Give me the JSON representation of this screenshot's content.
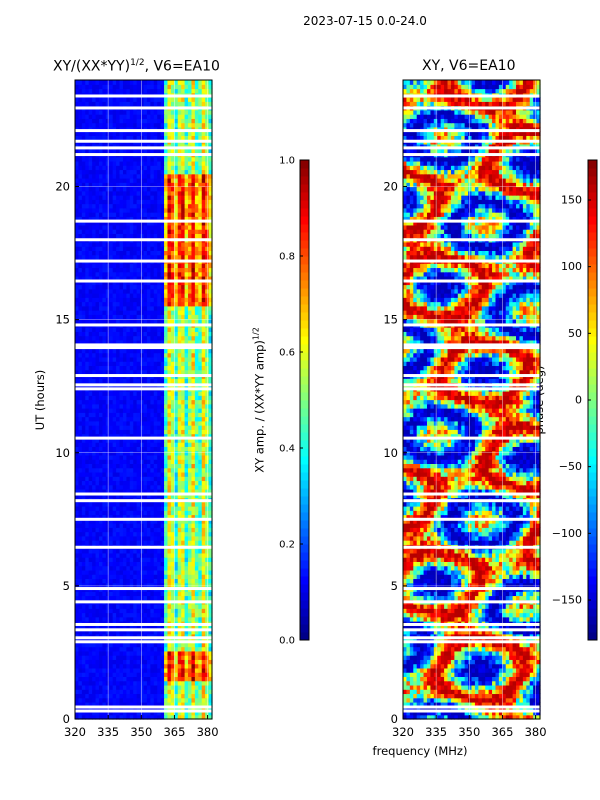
{
  "figure": {
    "suptitle": "2023-07-15 0.0-24.0",
    "shared_xlabel": "frequency (MHz)"
  },
  "chart_data": [
    {
      "type": "heatmap",
      "title": "XY/(XX*YY)^{1/2}, V6=EA10",
      "title_main": "XY/(XX*YY)",
      "title_sup": "1/2",
      "title_tail": ", V6=EA10",
      "xlabel": "frequency (MHz)",
      "ylabel": "UT (hours)",
      "xlim": [
        320,
        382
      ],
      "ylim": [
        0,
        24
      ],
      "xticks": [
        "320",
        "335",
        "350",
        "365",
        "380"
      ],
      "yticks": [
        "0",
        "5",
        "10",
        "15",
        "20"
      ],
      "grid": true,
      "colormap": "jet",
      "colorbar": {
        "label": "XY amp. / (XX*YY amp)^{1/2}",
        "label_main": "XY amp. / (XX*YY amp)",
        "label_sup": "1/2",
        "range": [
          0.0,
          1.0
        ],
        "ticks": [
          "0.0",
          "0.2",
          "0.4",
          "0.6",
          "0.8",
          "1.0"
        ]
      },
      "gap_hours": [
        0.3,
        0.45,
        2.9,
        3.05,
        3.35,
        3.55,
        4.4,
        4.9,
        6.45,
        7.5,
        8.2,
        8.45,
        10.55,
        12.4,
        12.55,
        12.9,
        13.95,
        14.05,
        14.8,
        16.45,
        17.2,
        18.0,
        18.7,
        21.2,
        21.45,
        21.7,
        22.1,
        22.95,
        23.4
      ],
      "bright_band_mhz": [
        360,
        382
      ],
      "approx_amplitude_outside_band": 0.1,
      "approx_amplitude_in_band": 0.45
    },
    {
      "type": "heatmap",
      "title": "XY, V6=EA10",
      "xlabel": "frequency (MHz)",
      "ylabel": "",
      "xlim": [
        320,
        382
      ],
      "ylim": [
        0,
        24
      ],
      "xticks": [
        "320",
        "335",
        "350",
        "365",
        "380"
      ],
      "yticks": [
        "0",
        "5",
        "10",
        "15",
        "20"
      ],
      "grid": true,
      "colormap": "jet",
      "colorbar": {
        "label": "phase (deg)",
        "range": [
          -180,
          180
        ],
        "ticks": [
          "−150",
          "−100",
          "−50",
          "0",
          "50",
          "100",
          "150"
        ]
      },
      "gap_hours": [
        0.3,
        0.45,
        2.9,
        3.05,
        3.35,
        3.55,
        4.4,
        4.9,
        6.45,
        7.5,
        8.2,
        8.45,
        10.55,
        12.4,
        12.55,
        12.9,
        13.95,
        14.05,
        14.8,
        16.45,
        17.2,
        18.0,
        18.7,
        21.2,
        21.45,
        21.7,
        22.1,
        22.95,
        23.4
      ],
      "phase_wraps_full_range": true
    }
  ]
}
